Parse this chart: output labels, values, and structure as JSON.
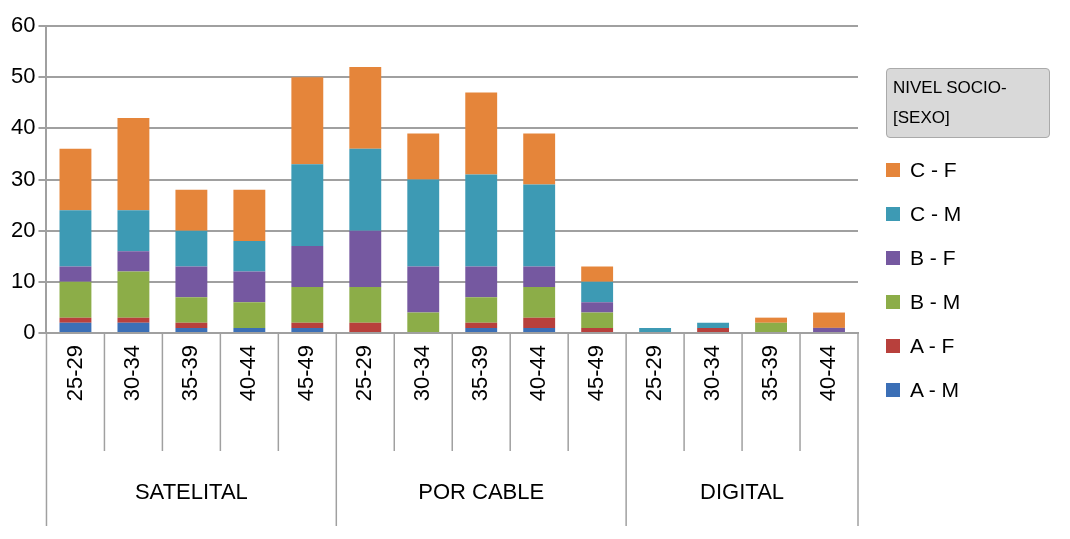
{
  "chart_data": {
    "type": "bar",
    "stacked": true,
    "categories": [
      "25-29",
      "30-34",
      "35-39",
      "40-44",
      "45-49",
      "25-29",
      "30-34",
      "35-39",
      "40-44",
      "45-49",
      "25-29",
      "30-34",
      "35-39",
      "40-44"
    ],
    "series": [
      {
        "name": "A - M",
        "color": "#3b6fb6",
        "values": [
          2,
          2,
          1,
          1,
          1,
          0,
          0,
          1,
          1,
          0,
          0,
          0,
          0,
          0
        ]
      },
      {
        "name": "A - F",
        "color": "#b8403c",
        "values": [
          1,
          1,
          1,
          0,
          1,
          2,
          0,
          1,
          2,
          1,
          0,
          1,
          0,
          0
        ]
      },
      {
        "name": "B - M",
        "color": "#8cad48",
        "values": [
          7,
          9,
          5,
          5,
          7,
          7,
          4,
          5,
          6,
          3,
          0,
          0,
          2,
          0
        ]
      },
      {
        "name": "B - F",
        "color": "#7558a0",
        "values": [
          3,
          4,
          6,
          6,
          8,
          11,
          9,
          6,
          4,
          2,
          0,
          0,
          0,
          1
        ]
      },
      {
        "name": "C - M",
        "color": "#3d9ab4",
        "values": [
          11,
          8,
          7,
          6,
          16,
          16,
          17,
          18,
          16,
          4,
          1,
          1,
          0,
          0
        ]
      },
      {
        "name": "C - F",
        "color": "#e5853a",
        "values": [
          12,
          18,
          8,
          10,
          17,
          16,
          9,
          16,
          10,
          3,
          0,
          0,
          1,
          3
        ]
      }
    ],
    "ylim": [
      0,
      60
    ],
    "yticks": [
      0,
      10,
      20,
      30,
      40,
      50,
      60
    ],
    "grid": "y",
    "legend": "right",
    "legend_title": "NIVEL SOCIO- [SEXO]",
    "annotations": [
      "SATELITAL",
      "POR CABLE",
      "DIGITAL"
    ]
  }
}
